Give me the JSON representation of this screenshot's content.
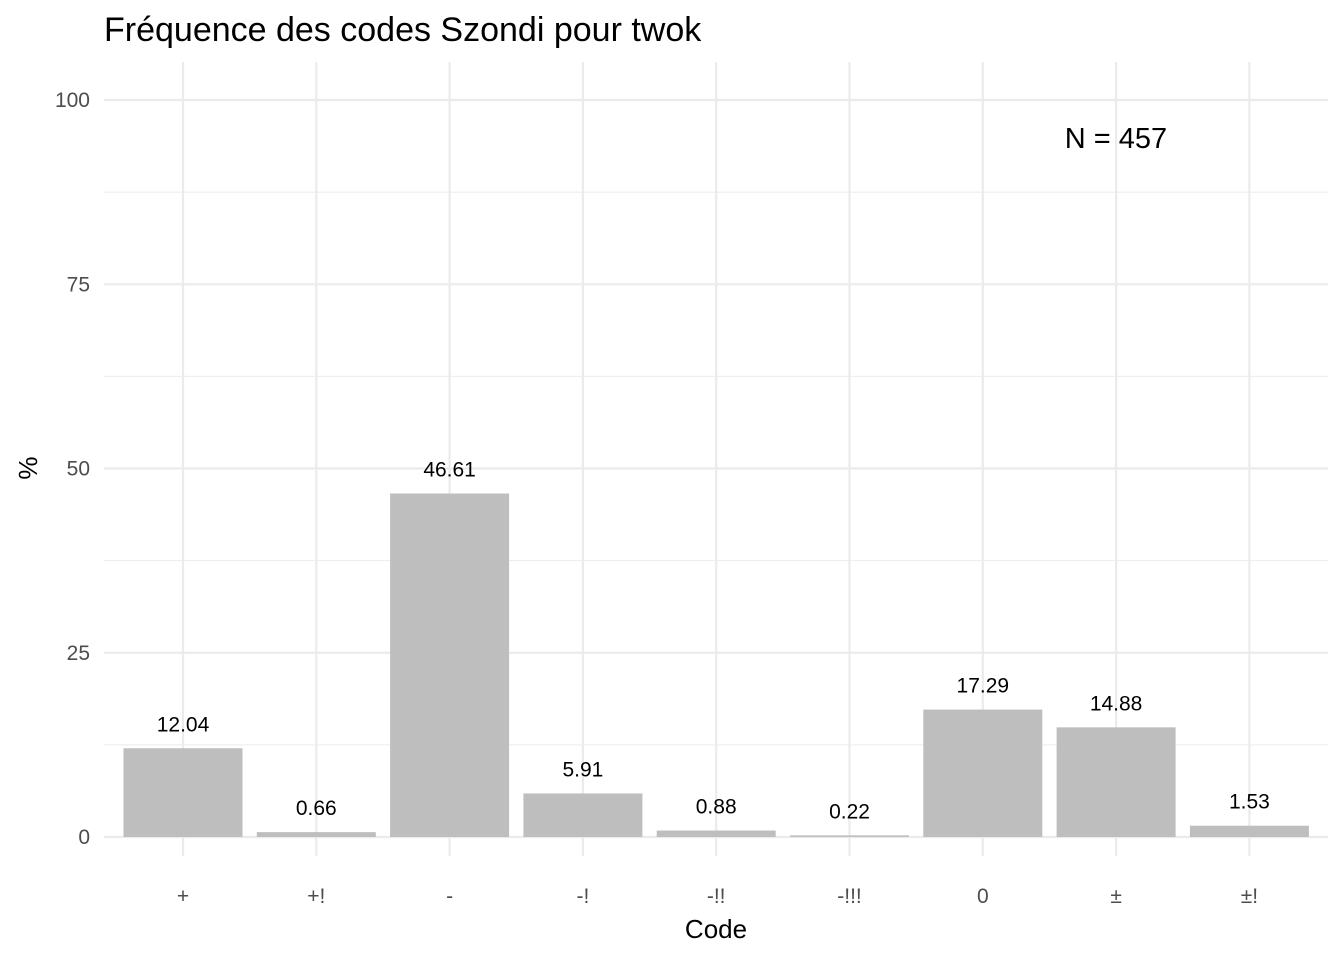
{
  "chart_data": {
    "type": "bar",
    "title": "Fréquence des codes Szondi pour twok",
    "xlabel": "Code",
    "ylabel": "%",
    "categories": [
      "+",
      "+!",
      "-",
      "-!",
      "-!!",
      "-!!!",
      "0",
      "±",
      "±!"
    ],
    "values": [
      12.04,
      0.66,
      46.61,
      5.91,
      0.88,
      0.22,
      17.29,
      14.88,
      1.53
    ],
    "data_labels": [
      "12.04",
      "0.66",
      "46.61",
      "5.91",
      "0.88",
      "0.22",
      "17.29",
      "14.88",
      "1.53"
    ],
    "ylim": [
      0,
      100
    ],
    "yticks": [
      0,
      25,
      50,
      75,
      100
    ],
    "annotation": "N = 457",
    "grid": true,
    "bar_color": "#bebebe",
    "grid_color": "#ebebeb"
  }
}
